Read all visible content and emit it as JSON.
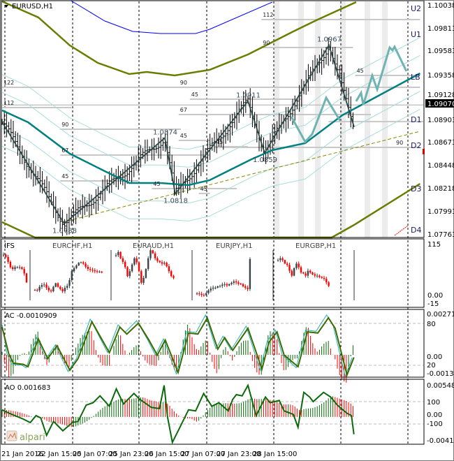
{
  "header": {
    "symbol_label": "EURUSD,H1"
  },
  "colors": {
    "bull_candle": "#3c4448",
    "bear_candle": "#ff0000",
    "ma": "#008080",
    "band_outer": "#6b7d00",
    "band_inner": "#a8dcdc",
    "upper_blue": "#0000ff",
    "forecast": "#6fb3b3",
    "zigzag": "#2f4a4a",
    "ac_line": "#3d6b00",
    "ac_signal": "#20b0b0",
    "ao_line": "#0a6a0a",
    "hist_up": "#0a6a0a",
    "hist_down": "#ff0000",
    "level": "#c8c8c8",
    "shade": "#ececec"
  },
  "price_axis": {
    "labels": [
      "1.10038",
      "1.09813",
      "1.09583",
      "1.09358",
      "1.09128",
      "1.08903",
      "1.08673",
      "1.08448",
      "1.08218",
      "1.07993",
      "1.07763"
    ],
    "current_price": "1.09070"
  },
  "pivots": [
    {
      "label": "U2",
      "price": 1.10038
    },
    {
      "label": "U1",
      "price": 1.09813
    },
    {
      "label": "LB",
      "price": 1.09358
    },
    {
      "label": "D1",
      "price": 1.08903
    },
    {
      "label": "D2",
      "price": 1.08673
    },
    {
      "label": "D3",
      "price": 1.08218
    },
    {
      "label": "D4",
      "price": 1.07763
    }
  ],
  "time_axis": {
    "labels": [
      "21 Jan 2016",
      "22 Jan 15:00",
      "25 Jan 07:00",
      "25 Jan 23:00",
      "26 Jan 15:00",
      "27 Jan 07:00",
      "27 Jan 23:00",
      "28 Jan 15:00"
    ]
  },
  "ifs_panel": {
    "title": "IFS",
    "axis": [
      "115",
      "0.00",
      "-15"
    ],
    "pairs": [
      "EURCHF,H1",
      "EURAUD,H1",
      "EURJPY,H1",
      "EURGBP,H1"
    ]
  },
  "ac_panel": {
    "title": "AC -0.0010909",
    "axis": [
      "0.002717",
      "80",
      "0.00",
      "20",
      "-0.001331"
    ]
  },
  "ao_panel": {
    "title": "AO 0.001683",
    "axis": [
      "0.005489",
      "100",
      "0.00",
      "-100",
      "-0.004191"
    ]
  },
  "logo": {
    "text": "alpari"
  },
  "chart_data": [
    {
      "type": "line",
      "title": "EURUSD,H1",
      "ylim": [
        1.07763,
        1.10038
      ],
      "x_unit": "bar index (H1)",
      "zigzag": [
        {
          "bar": 0,
          "price": 1.089,
          "label": ""
        },
        {
          "bar": 27.8,
          "price": 1.0788,
          "label": "1.0788"
        },
        {
          "bar": 72.8,
          "price": 1.0874,
          "label": "1.0874"
        },
        {
          "bar": 77.5,
          "price": 1.0818,
          "label": "1.0818"
        },
        {
          "bar": 110,
          "price": 1.0911,
          "label": "1.0911"
        },
        {
          "bar": 117.5,
          "price": 1.0859,
          "label": "1.0859"
        },
        {
          "bar": 146.25,
          "price": 1.0967,
          "label": "1.0967"
        },
        {
          "bar": 157.5,
          "price": 1.0885,
          "label": ""
        }
      ],
      "moving_average": [
        [
          -1,
          1.09016
        ],
        [
          11.6,
          1.08897
        ],
        [
          30.3,
          1.08582
        ],
        [
          45.9,
          1.08407
        ],
        [
          56.9,
          1.08288
        ],
        [
          70.9,
          1.08288
        ],
        [
          83.4,
          1.08267
        ],
        [
          92.8,
          1.08316
        ],
        [
          102.2,
          1.08421
        ],
        [
          111.6,
          1.08526
        ],
        [
          120.9,
          1.08617
        ],
        [
          135.6,
          1.08687
        ],
        [
          152.2,
          1.08967
        ],
        [
          187,
          1.09387
        ]
      ],
      "inner_band_offsets": [
        0.0018,
        0.0036,
        -0.0018,
        -0.0036
      ],
      "upper_band": [
        [
          -1,
          1.10108
        ],
        [
          16.25,
          1.09947
        ],
        [
          30.3,
          1.09667
        ],
        [
          42.8,
          1.09492
        ],
        [
          56.9,
          1.0938
        ],
        [
          64.7,
          1.09401
        ],
        [
          77.2,
          1.09366
        ],
        [
          92.8,
          1.09422
        ],
        [
          110,
          1.09576
        ],
        [
          130.3,
          1.09807
        ],
        [
          141.25,
          1.09926
        ],
        [
          158.4,
          1.10101
        ]
      ],
      "lower_band": [
        [
          -1,
          1.07896
        ],
        [
          14.7,
          1.07742
        ],
        [
          147.5,
          1.07742
        ],
        [
          157.5,
          1.07868
        ],
        [
          187,
          1.08281
        ]
      ],
      "blue_line": [
        [
          30.3,
          1.10122
        ],
        [
          45.9,
          1.09912
        ],
        [
          58.4,
          1.09807
        ],
        [
          70.9,
          1.09786
        ],
        [
          86.6,
          1.09786
        ],
        [
          92.8,
          1.09828
        ],
        [
          120.9,
          1.10101
        ]
      ],
      "trend_line": [
        [
          27.2,
          1.07896
        ],
        [
          187,
          1.08806
        ]
      ],
      "forecast": [
        [
          [
            129.4,
            1.08953
          ],
          [
            135.6,
            1.08701
          ],
          [
            138.75,
            1.08778
          ],
          [
            145,
            1.09142
          ],
          [
            151.25,
            1.08911
          ]
        ],
        [
          [
            158.4,
            1.09107
          ],
          [
            160.6,
            1.09191
          ],
          [
            161.6,
            1.09072
          ],
          [
            165.6,
            1.09366
          ],
          [
            167.8,
            1.09226
          ],
          [
            173.4,
            1.09646
          ],
          [
            174.7,
            1.09618
          ],
          [
            175.6,
            1.09653
          ],
          [
            180.9,
            1.09408
          ]
        ]
      ],
      "shaded_bars": [
        121.6,
        132.5,
        140,
        151.25,
        162.2,
        170
      ],
      "levels": [
        {
          "label": "112",
          "price": 1.09044,
          "from": 0,
          "to": 31
        },
        {
          "label": "90",
          "price": 1.08827,
          "from": 26,
          "to": 80
        },
        {
          "label": "67",
          "price": 1.08568,
          "from": 26,
          "to": 93
        },
        {
          "label": "45",
          "price": 1.08309,
          "from": 26,
          "to": 61
        },
        {
          "label": "45",
          "price": 1.08232,
          "from": 67,
          "to": 105
        },
        {
          "label": "45",
          "price": 1.08183,
          "from": 88,
          "to": 93
        },
        {
          "label": "90",
          "price": 1.09247,
          "from": 79,
          "to": 187
        },
        {
          "label": "67",
          "price": 1.08974,
          "from": 79,
          "to": 165
        },
        {
          "label": "45",
          "price": 1.08715,
          "from": 79,
          "to": 93
        },
        {
          "label": "112",
          "price": 1.09926,
          "from": 116,
          "to": 187
        },
        {
          "label": "90",
          "price": 1.09646,
          "from": 116,
          "to": 157
        },
        {
          "label": "122",
          "price": 1.09247,
          "from": 0,
          "to": 100
        },
        {
          "label": "45",
          "price": 1.09128,
          "from": 84,
          "to": 134
        },
        {
          "label": "45",
          "price": 1.08652,
          "from": 95,
          "to": 110
        },
        {
          "label": "45",
          "price": 1.09366,
          "from": 158,
          "to": 187
        },
        {
          "label": "90",
          "price": 1.08645,
          "from": 95,
          "to": 187
        }
      ]
    },
    {
      "type": "bar",
      "title": "IFS",
      "ylim": [
        -15,
        115
      ],
      "groups": [
        {
          "name": "",
          "closes": [
            92,
            87,
            76,
            64,
            60,
            64,
            64,
            64,
            60,
            50,
            30
          ]
        },
        {
          "name": "EURCHF,H1",
          "closes": [
            13,
            12,
            20,
            24,
            25,
            18,
            12,
            10,
            20,
            28,
            20,
            15,
            10,
            18,
            22,
            35,
            55,
            62,
            68,
            74,
            75,
            72,
            65,
            60,
            58,
            57,
            55,
            54,
            54,
            52
          ]
        },
        {
          "name": "EURAUD,H1",
          "closes": [
            91,
            98,
            84,
            76,
            64,
            44,
            55,
            70,
            84,
            75,
            55,
            29,
            40,
            60,
            84,
            102,
            95,
            84,
            78,
            75,
            72,
            74,
            66,
            55,
            44,
            40
          ]
        },
        {
          "name": "EURJPY,H1",
          "closes": [
            5,
            4,
            2,
            1,
            6,
            12,
            16,
            18,
            18,
            21,
            22,
            25,
            26,
            23,
            26,
            29,
            32,
            30,
            27,
            26,
            21,
            18,
            15,
            82
          ]
        },
        {
          "name": "EURGBP,H1",
          "closes": [
            80,
            84,
            80,
            72,
            69,
            56,
            45,
            62,
            72,
            64,
            52,
            50,
            45,
            56,
            52,
            48,
            45,
            45,
            42,
            40,
            38,
            30,
            22
          ]
        }
      ]
    },
    {
      "type": "line",
      "title": "AC -0.0010909",
      "ylim": [
        -0.001331,
        0.002717
      ],
      "line": [
        [
          0,
          0.00187
        ],
        [
          3,
          6e-05
        ],
        [
          5,
          -0.00056
        ],
        [
          9.5,
          -0.00064
        ],
        [
          11.6,
          -0.0008
        ],
        [
          16.2,
          0.00108
        ],
        [
          20.4,
          -0.00025
        ],
        [
          24.6,
          0.00061
        ],
        [
          30.3,
          -0.00104
        ],
        [
          34,
          -0.00025
        ],
        [
          40.2,
          0.00223
        ],
        [
          48,
          0.00014
        ],
        [
          52.7,
          0.00187
        ],
        [
          55.8,
          0.0014
        ],
        [
          61,
          0.00213
        ],
        [
          65.7,
          0.001
        ],
        [
          69.4,
          -2e-05
        ],
        [
          73,
          0.001
        ],
        [
          78.75,
          -0.00119
        ],
        [
          83.4,
          0.00147
        ],
        [
          87.6,
          0.0014
        ],
        [
          91.8,
          0.00249
        ],
        [
          96.5,
          0.00038
        ],
        [
          99.6,
          0.00116
        ],
        [
          103.2,
          0.0003
        ],
        [
          110,
          0.00179
        ],
        [
          116.25,
          -0.00096
        ],
        [
          119.4,
          0.00085
        ],
        [
          123,
          0.00155
        ],
        [
          126.2,
          -2e-05
        ],
        [
          132.4,
          -0.0008
        ],
        [
          136.6,
          0.00155
        ],
        [
          141.25,
          0.00147
        ],
        [
          146,
          0.00249
        ],
        [
          149,
          0.00179
        ],
        [
          154.3,
          -0.00135
        ],
        [
          157.4,
          -0.00017
        ]
      ]
    },
    {
      "type": "line",
      "title": "AO 0.001683",
      "ylim": [
        -0.004191,
        0.005489
      ],
      "line": [
        [
          0,
          0.00122
        ],
        [
          3.2,
          0.00062
        ],
        [
          9.5,
          -0.00037
        ],
        [
          12.6,
          -0.00097
        ],
        [
          15.2,
          0.00023
        ],
        [
          17.3,
          -0.00017
        ],
        [
          19.9,
          -0.00316
        ],
        [
          23,
          -0.00077
        ],
        [
          27.2,
          -0.00236
        ],
        [
          31.4,
          -0.00097
        ],
        [
          34,
          -0.00077
        ],
        [
          37.6,
          0.00202
        ],
        [
          40.7,
          0.00242
        ],
        [
          43.8,
          0.00361
        ],
        [
          48,
          0.00182
        ],
        [
          51.1,
          0.0048
        ],
        [
          54.3,
          0.00222
        ],
        [
          59,
          0.00401
        ],
        [
          61.6,
          0.00301
        ],
        [
          66.8,
          0.00162
        ],
        [
          70.4,
          0.00142
        ],
        [
          72.5,
          0.0054
        ],
        [
          74,
          2e-05
        ],
        [
          76.2,
          -0.00435
        ],
        [
          79.3,
          -0.00196
        ],
        [
          83.4,
          0.00122
        ],
        [
          86.6,
          0.00103
        ],
        [
          90.2,
          0.00401
        ],
        [
          93.8,
          0.00182
        ],
        [
          97,
          0.00242
        ],
        [
          101.2,
          0.00103
        ],
        [
          103.2,
          0.00301
        ],
        [
          104.8,
          0.00381
        ],
        [
          107.4,
          0.00361
        ],
        [
          110,
          0.0054
        ],
        [
          113.7,
          0.00023
        ],
        [
          117.8,
          0.00341
        ],
        [
          119.9,
          0.00242
        ],
        [
          124,
          0.00282
        ],
        [
          126.2,
          0.00103
        ],
        [
          130.3,
          0.00043
        ],
        [
          132.4,
          -0.00177
        ],
        [
          135,
          0.00421
        ],
        [
          137.6,
          0.00341
        ],
        [
          139.2,
          0.00262
        ],
        [
          143.8,
          0.00421
        ],
        [
          147,
          0.00341
        ],
        [
          150,
          0.00202
        ],
        [
          154.3,
          0.00062
        ],
        [
          156.3,
          0.00023
        ],
        [
          157.4,
          -0.00296
        ]
      ]
    }
  ]
}
